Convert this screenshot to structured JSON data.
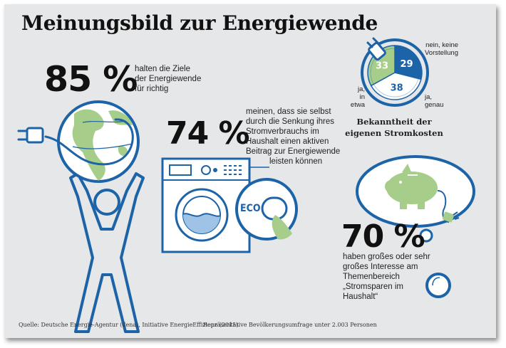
{
  "title": "Meinungsbild zur Energiewende",
  "stat1": {
    "value": "85 %",
    "text_lines": [
      "halten die Ziele",
      "der Energiewende",
      "für richtig"
    ]
  },
  "stat2": {
    "value": "74 %",
    "text_lines": [
      "meinen, dass sie selbst",
      "durch die Senkung ihres",
      "Stromverbrauchs im",
      "Haushalt einen aktiven",
      "Beitrag zur Energiewende",
      "leisten können"
    ]
  },
  "stat3": {
    "value": "70 %",
    "text_lines": [
      "haben großes oder sehr",
      "großes Interesse am",
      "Themenbereich",
      "„Stromsparen im",
      "Haushalt“"
    ]
  },
  "eco_label": "ECO",
  "chart_data": {
    "type": "pie",
    "title": "Bekanntheit der eigenen Stromkosten",
    "title_lines": [
      "Bekanntheit der",
      "eigenen Stromkosten"
    ],
    "slices": [
      {
        "label": "nein, keine Vorstellung",
        "label_lines": [
          "nein, keine",
          "Vorstellung"
        ],
        "value": 29,
        "color": "#1c63a8"
      },
      {
        "label": "ja, genau",
        "label_lines": [
          "ja,",
          "genau"
        ],
        "value": 38,
        "color": "#ffffff"
      },
      {
        "label": "ja, in etwa",
        "label_lines": [
          "ja,",
          "in etwa"
        ],
        "value": 33,
        "color": "#a7cd8a"
      }
    ]
  },
  "footer": {
    "source": "Quelle: Deutsche Energie-Agentur (dena), Initiative EnergieEffizienz (2015)",
    "survey": "Repräsentative Bevölkerungsumfrage unter 2.003 Personen"
  },
  "colors": {
    "blue": "#1c63a8",
    "green": "#a7cd8a",
    "background": "#e6e7e8"
  }
}
